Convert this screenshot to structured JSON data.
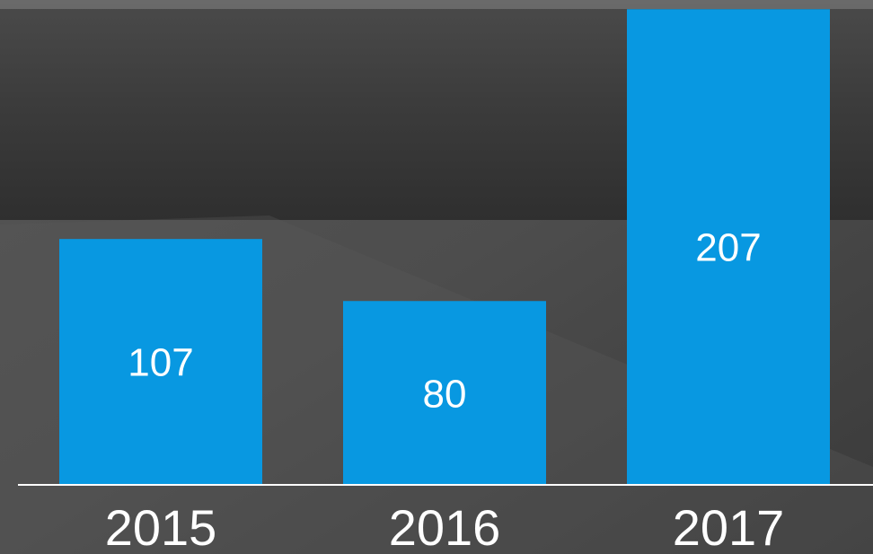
{
  "chart_data": {
    "type": "bar",
    "categories": [
      "2015",
      "2016",
      "2017"
    ],
    "values": [
      107,
      80,
      207
    ],
    "color": "#0898e1",
    "ylim": [
      0,
      211
    ]
  }
}
